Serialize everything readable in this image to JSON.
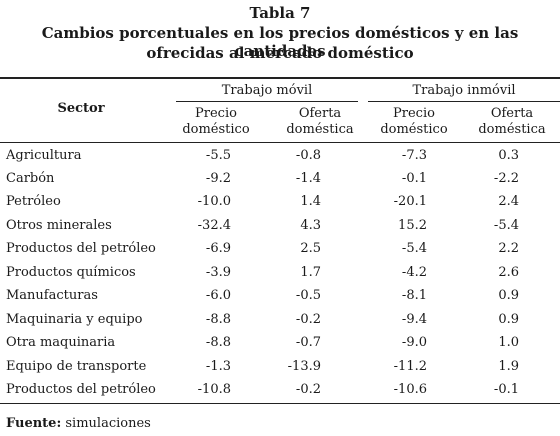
{
  "title": {
    "line1": "Tabla 7",
    "line2": "Cambios porcentuales en los precios domésticos y en las cantidades",
    "line3": "ofrecidas al mercado doméstico"
  },
  "header": {
    "sector": "Sector",
    "group1": "Trabajo móvil",
    "group2": "Trabajo inmóvil",
    "col_precio_l1": "Precio",
    "col_precio_l2": "doméstico",
    "col_oferta_l1": "Oferta",
    "col_oferta_l2": "doméstica"
  },
  "rows": [
    {
      "sector": "Agricultura",
      "v": [
        "-5.5",
        "-0.8",
        "-7.3",
        "0.3"
      ]
    },
    {
      "sector": "Carbón",
      "v": [
        "-9.2",
        "-1.4",
        "-0.1",
        "-2.2"
      ]
    },
    {
      "sector": "Petróleo",
      "v": [
        "-10.0",
        "1.4",
        "-20.1",
        "2.4"
      ]
    },
    {
      "sector": "Otros minerales",
      "v": [
        "-32.4",
        "4.3",
        "15.2",
        "-5.4"
      ]
    },
    {
      "sector": "Productos del petróleo",
      "v": [
        "-6.9",
        "2.5",
        "-5.4",
        "2.2"
      ]
    },
    {
      "sector": "Productos químicos",
      "v": [
        "-3.9",
        "1.7",
        "-4.2",
        "2.6"
      ]
    },
    {
      "sector": "Manufacturas",
      "v": [
        "-6.0",
        "-0.5",
        "-8.1",
        "0.9"
      ]
    },
    {
      "sector": "Maquinaria y equipo",
      "v": [
        "-8.8",
        "-0.2",
        "-9.4",
        "0.9"
      ]
    },
    {
      "sector": "Otra maquinaria",
      "v": [
        "-8.8",
        "-0.7",
        "-9.0",
        "1.0"
      ]
    },
    {
      "sector": "Equipo de transporte",
      "v": [
        "-1.3",
        "-13.9",
        "-11.2",
        "1.9"
      ]
    },
    {
      "sector": "Productos del petróleo",
      "v": [
        "-10.8",
        "-0.2",
        "-10.6",
        "-0.1"
      ]
    }
  ],
  "footer": {
    "label": "Fuente:",
    "text": "simulaciones"
  }
}
